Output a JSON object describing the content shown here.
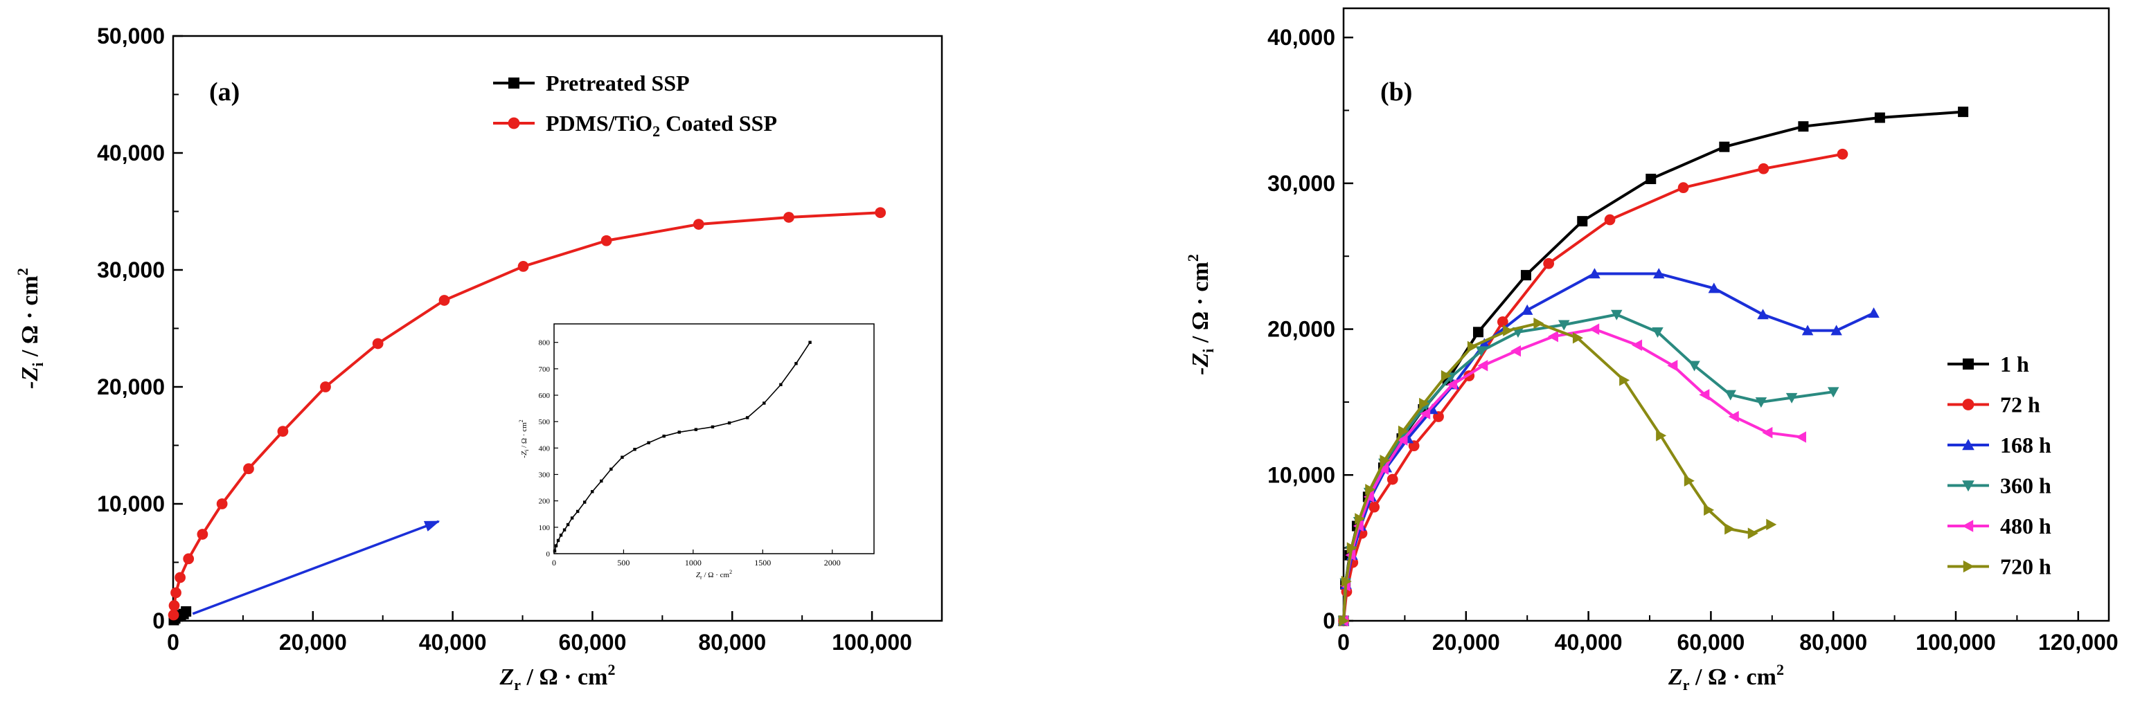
{
  "chart_data": [
    {
      "type": "line",
      "panel_label": "(a)",
      "xlabel": "Zr / Ω · cm2",
      "ylabel": "-Zi / Ω · cm2",
      "xlim": [
        0,
        110000
      ],
      "ylim": [
        0,
        50000
      ],
      "x_ticks": [
        0,
        20000,
        40000,
        60000,
        80000,
        100000
      ],
      "x_tick_labels": [
        "0",
        "20,000",
        "40,000",
        "60,000",
        "80,000",
        "100,000"
      ],
      "y_ticks": [
        0,
        10000,
        20000,
        30000,
        40000,
        50000
      ],
      "y_tick_labels": [
        "0",
        "10,000",
        "20,000",
        "30,000",
        "40,000",
        "50,000"
      ],
      "legend_position": "top-right",
      "series": [
        {
          "name": "Pretreated SSP",
          "color": "#000000",
          "marker": "square",
          "points": [
            [
              100,
              60
            ],
            [
              300,
              200
            ],
            [
              700,
              380
            ],
            [
              1100,
              480
            ],
            [
              1500,
              580
            ],
            [
              1850,
              800
            ]
          ]
        },
        {
          "name": "PDMS/TiO2 Coated SSP",
          "color": "#e8201c",
          "marker": "circle",
          "points": [
            [
              60,
              500
            ],
            [
              150,
              1300
            ],
            [
              400,
              2400
            ],
            [
              1000,
              3700
            ],
            [
              2200,
              5300
            ],
            [
              4200,
              7400
            ],
            [
              7000,
              10000
            ],
            [
              10800,
              13000
            ],
            [
              15700,
              16200
            ],
            [
              21800,
              20000
            ],
            [
              29300,
              23700
            ],
            [
              38800,
              27400
            ],
            [
              50100,
              30300
            ],
            [
              62000,
              32500
            ],
            [
              75200,
              33900
            ],
            [
              88100,
              34500
            ],
            [
              101200,
              34900
            ]
          ]
        }
      ],
      "arrow": {
        "from": [
          2800,
          600
        ],
        "to": [
          38000,
          8500
        ],
        "color": "#1b2fd8"
      },
      "inset": {
        "type": "line",
        "xlabel": "Zr / Ω · cm2",
        "ylabel": "-Zi / Ω · cm2",
        "xlim": [
          0,
          2300
        ],
        "ylim": [
          0,
          870
        ],
        "x_ticks": [
          0,
          500,
          1000,
          1500,
          2000
        ],
        "x_tick_labels": [
          "0",
          "500",
          "1000",
          "1500",
          "2000"
        ],
        "y_ticks": [
          0,
          100,
          200,
          300,
          400,
          500,
          600,
          700,
          800
        ],
        "y_tick_labels": [
          "0",
          "100",
          "200",
          "300",
          "400",
          "500",
          "600",
          "700",
          "800"
        ],
        "series": [
          {
            "name": "Pretreated SSP",
            "color": "#000000",
            "points": [
              [
                5,
                10
              ],
              [
                15,
                30
              ],
              [
                30,
                50
              ],
              [
                50,
                70
              ],
              [
                75,
                90
              ],
              [
                100,
                110
              ],
              [
                130,
                135
              ],
              [
                170,
                160
              ],
              [
                220,
                195
              ],
              [
                275,
                235
              ],
              [
                340,
                275
              ],
              [
                410,
                320
              ],
              [
                490,
                365
              ],
              [
                580,
                395
              ],
              [
                680,
                420
              ],
              [
                790,
                445
              ],
              [
                900,
                460
              ],
              [
                1020,
                470
              ],
              [
                1140,
                480
              ],
              [
                1260,
                495
              ],
              [
                1390,
                515
              ],
              [
                1510,
                570
              ],
              [
                1630,
                640
              ],
              [
                1740,
                720
              ],
              [
                1840,
                800
              ]
            ]
          }
        ]
      }
    },
    {
      "type": "line",
      "panel_label": "(b)",
      "xlabel": "Zr / Ω · cm2",
      "ylabel": "-Zi / Ω · cm2",
      "xlim": [
        0,
        125000
      ],
      "ylim": [
        0,
        42000
      ],
      "x_ticks": [
        0,
        20000,
        40000,
        60000,
        80000,
        100000,
        120000
      ],
      "x_tick_labels": [
        "0",
        "20,000",
        "40,000",
        "60,000",
        "80,000",
        "100,000",
        "120,000"
      ],
      "y_ticks": [
        0,
        10000,
        20000,
        30000,
        40000
      ],
      "y_tick_labels": [
        "0",
        "10,000",
        "20,000",
        "30,000",
        "40,000"
      ],
      "legend_position": "right",
      "series": [
        {
          "name": "1 h",
          "color": "#000000",
          "marker": "square",
          "points": [
            [
              0,
              0
            ],
            [
              300,
              2500
            ],
            [
              1000,
              4500
            ],
            [
              2200,
              6500
            ],
            [
              4000,
              8500
            ],
            [
              6500,
              10500
            ],
            [
              9500,
              12500
            ],
            [
              13000,
              14500
            ],
            [
              17000,
              16500
            ],
            [
              22000,
              19800
            ],
            [
              29800,
              23700
            ],
            [
              39000,
              27400
            ],
            [
              50200,
              30300
            ],
            [
              62200,
              32500
            ],
            [
              75100,
              33900
            ],
            [
              87600,
              34500
            ],
            [
              101200,
              34900
            ]
          ]
        },
        {
          "name": "72 h",
          "color": "#e8201c",
          "marker": "circle",
          "points": [
            [
              0,
              0
            ],
            [
              500,
              2000
            ],
            [
              1500,
              4000
            ],
            [
              3000,
              6000
            ],
            [
              5000,
              7800
            ],
            [
              8000,
              9700
            ],
            [
              11500,
              12000
            ],
            [
              15500,
              14000
            ],
            [
              20500,
              16800
            ],
            [
              26000,
              20500
            ],
            [
              33500,
              24500
            ],
            [
              43500,
              27500
            ],
            [
              55500,
              29700
            ],
            [
              68600,
              31000
            ],
            [
              81500,
              32000
            ]
          ]
        },
        {
          "name": "168 h",
          "color": "#1b2fd8",
          "marker": "triangle-up",
          "points": [
            [
              0,
              0
            ],
            [
              400,
              2500
            ],
            [
              1400,
              4500
            ],
            [
              2800,
              6500
            ],
            [
              4500,
              8500
            ],
            [
              7000,
              10500
            ],
            [
              10500,
              12500
            ],
            [
              14500,
              14500
            ],
            [
              18000,
              16200
            ],
            [
              23000,
              19000
            ],
            [
              30000,
              21300
            ],
            [
              41000,
              23800
            ],
            [
              51500,
              23800
            ],
            [
              60500,
              22800
            ],
            [
              68500,
              21000
            ],
            [
              75800,
              19900
            ],
            [
              80500,
              19900
            ],
            [
              86600,
              21100
            ]
          ]
        },
        {
          "name": "360 h",
          "color": "#2a8a80",
          "marker": "triangle-down",
          "points": [
            [
              0,
              0
            ],
            [
              300,
              2600
            ],
            [
              1200,
              4800
            ],
            [
              2500,
              6800
            ],
            [
              4200,
              8800
            ],
            [
              6600,
              10800
            ],
            [
              9800,
              12800
            ],
            [
              13500,
              14800
            ],
            [
              17500,
              16700
            ],
            [
              22500,
              18500
            ],
            [
              28500,
              19800
            ],
            [
              36000,
              20300
            ],
            [
              44600,
              21000
            ],
            [
              51300,
              19800
            ],
            [
              57300,
              17500
            ],
            [
              63200,
              15500
            ],
            [
              68200,
              15000
            ],
            [
              73200,
              15300
            ],
            [
              80000,
              15700
            ]
          ]
        },
        {
          "name": "480 h",
          "color": "#ff2cd4",
          "marker": "triangle-left",
          "points": [
            [
              0,
              0
            ],
            [
              350,
              2400
            ],
            [
              1200,
              4500
            ],
            [
              2500,
              6500
            ],
            [
              4200,
              8500
            ],
            [
              6600,
              10400
            ],
            [
              9700,
              12400
            ],
            [
              13400,
              14200
            ],
            [
              17800,
              16200
            ],
            [
              22800,
              17500
            ],
            [
              28200,
              18500
            ],
            [
              34300,
              19500
            ],
            [
              41000,
              20000
            ],
            [
              48000,
              18900
            ],
            [
              53800,
              17500
            ],
            [
              59000,
              15500
            ],
            [
              63800,
              14000
            ],
            [
              69300,
              12900
            ],
            [
              74800,
              12600
            ]
          ]
        },
        {
          "name": "720 h",
          "color": "#8a8a12",
          "marker": "triangle-right",
          "points": [
            [
              0,
              0
            ],
            [
              400,
              2700
            ],
            [
              1300,
              5000
            ],
            [
              2600,
              7000
            ],
            [
              4300,
              9000
            ],
            [
              6700,
              11000
            ],
            [
              9700,
              13000
            ],
            [
              13100,
              14900
            ],
            [
              16700,
              16800
            ],
            [
              21000,
              18800
            ],
            [
              26800,
              19900
            ],
            [
              31800,
              20400
            ],
            [
              38200,
              19400
            ],
            [
              45800,
              16500
            ],
            [
              51800,
              12700
            ],
            [
              56400,
              9600
            ],
            [
              59600,
              7600
            ],
            [
              63000,
              6300
            ],
            [
              66800,
              6000
            ],
            [
              69800,
              6600
            ]
          ]
        }
      ]
    }
  ]
}
